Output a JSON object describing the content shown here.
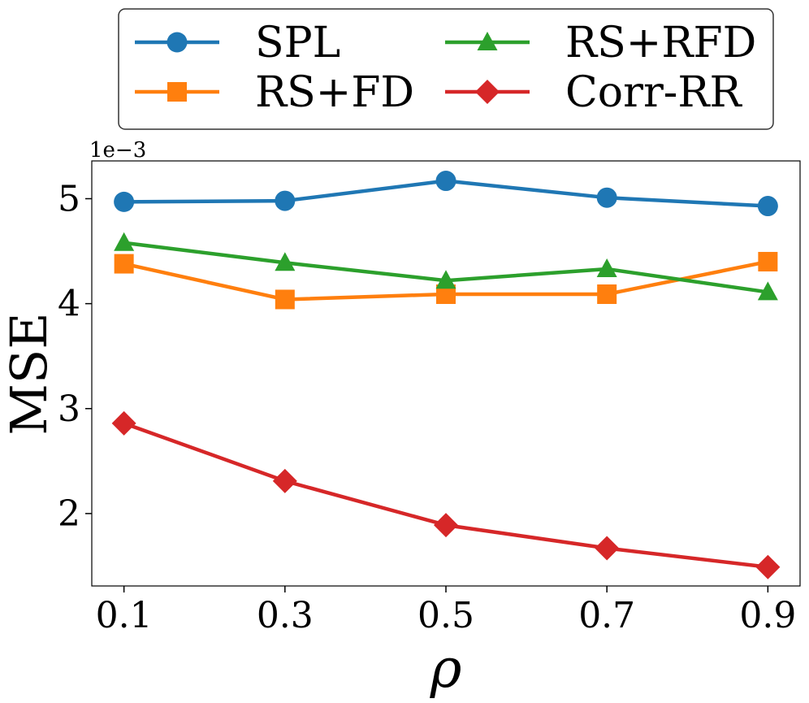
{
  "chart_data": {
    "type": "line",
    "title": "",
    "xlabel": "ρ",
    "ylabel": "MSE",
    "y_exponent_label": "1e−3",
    "x": [
      0.1,
      0.3,
      0.5,
      0.7,
      0.9
    ],
    "x_tick_labels": [
      "0.1",
      "0.3",
      "0.5",
      "0.7",
      "0.9"
    ],
    "xlim": [
      0.06,
      0.94
    ],
    "y_ticks": [
      2,
      3,
      4,
      5
    ],
    "y_tick_labels": [
      "2",
      "3",
      "4",
      "5"
    ],
    "ylim": [
      1.31,
      5.36
    ],
    "y_scale": 0.001,
    "grid": false,
    "legend_position": "top",
    "legend_columns": 2,
    "series": [
      {
        "name": "SPL",
        "color": "#1f77b4",
        "marker": "circle",
        "values": [
          4.97,
          4.98,
          5.17,
          5.01,
          4.93
        ]
      },
      {
        "name": "RS+FD",
        "color": "#ff7f0e",
        "marker": "square",
        "values": [
          4.38,
          4.04,
          4.09,
          4.09,
          4.4
        ]
      },
      {
        "name": "RS+RFD",
        "color": "#2ca02c",
        "marker": "triangle",
        "values": [
          4.58,
          4.39,
          4.22,
          4.33,
          4.11
        ]
      },
      {
        "name": "Corr-RR",
        "color": "#d62728",
        "marker": "diamond",
        "values": [
          2.86,
          2.31,
          1.89,
          1.67,
          1.49
        ]
      }
    ]
  }
}
